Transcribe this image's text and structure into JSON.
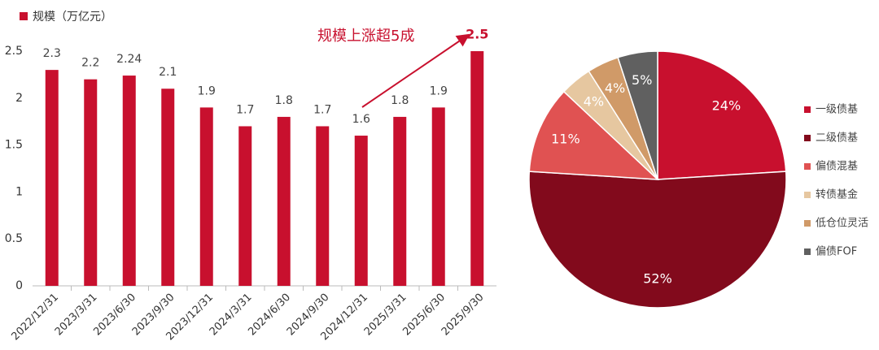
{
  "chart_data": [
    {
      "type": "bar",
      "legend": "规模（万亿元）",
      "color": "#c8102e",
      "categories": [
        "2022/12/31",
        "2023/3/31",
        "2023/6/30",
        "2023/9/30",
        "2023/12/31",
        "2024/3/31",
        "2024/6/30",
        "2024/9/30",
        "2024/12/31",
        "2025/3/31",
        "2025/6/30",
        "2025/9/30"
      ],
      "values": [
        2.3,
        2.2,
        2.24,
        2.1,
        1.9,
        1.7,
        1.8,
        1.7,
        1.6,
        1.8,
        1.9,
        2.5
      ],
      "ylim": [
        0,
        2.5
      ],
      "yticks": [
        0,
        0.5,
        1,
        1.5,
        2,
        2.5
      ],
      "grid": false,
      "annotation": "规模上涨超5成"
    },
    {
      "type": "pie",
      "categories": [
        "一级债基",
        "二级债基",
        "偏债混基",
        "转债基金",
        "低仓位灵活",
        "偏债FOF"
      ],
      "values": [
        24,
        52,
        11,
        4,
        4,
        5
      ],
      "value_labels": [
        "24%",
        "52%",
        "11%",
        "4%",
        "4%",
        "5%"
      ],
      "colors": [
        "#c8102e",
        "#820a1c",
        "#e05252",
        "#e6c7a0",
        "#d09a68",
        "#606060"
      ],
      "legend_position": "right"
    }
  ]
}
